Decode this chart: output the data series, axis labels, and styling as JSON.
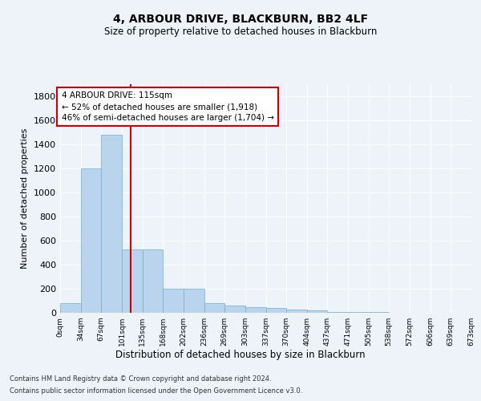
{
  "title": "4, ARBOUR DRIVE, BLACKBURN, BB2 4LF",
  "subtitle": "Size of property relative to detached houses in Blackburn",
  "xlabel": "Distribution of detached houses by size in Blackburn",
  "ylabel": "Number of detached properties",
  "bin_edges": [
    0,
    34,
    67,
    101,
    135,
    168,
    202,
    236,
    269,
    303,
    337,
    370,
    404,
    437,
    471,
    505,
    538,
    572,
    606,
    639,
    673
  ],
  "bin_labels": [
    "0sqm",
    "34sqm",
    "67sqm",
    "101sqm",
    "135sqm",
    "168sqm",
    "202sqm",
    "236sqm",
    "269sqm",
    "303sqm",
    "337sqm",
    "370sqm",
    "404sqm",
    "437sqm",
    "471sqm",
    "505sqm",
    "538sqm",
    "572sqm",
    "606sqm",
    "639sqm",
    "673sqm"
  ],
  "counts": [
    80,
    1200,
    1480,
    530,
    530,
    200,
    200,
    80,
    60,
    45,
    40,
    30,
    20,
    10,
    8,
    5,
    3,
    3,
    2,
    2
  ],
  "bar_color": "#bad4ee",
  "bar_edge_color": "#6baed6",
  "property_sqm": 115,
  "annotation_text": "4 ARBOUR DRIVE: 115sqm\n← 52% of detached houses are smaller (1,918)\n46% of semi-detached houses are larger (1,704) →",
  "annotation_box_color": "#ffffff",
  "annotation_box_edge_color": "#cc0000",
  "vline_color": "#cc0000",
  "ylim": [
    0,
    1900
  ],
  "yticks": [
    0,
    200,
    400,
    600,
    800,
    1000,
    1200,
    1400,
    1600,
    1800
  ],
  "footer_line1": "Contains HM Land Registry data © Crown copyright and database right 2024.",
  "footer_line2": "Contains public sector information licensed under the Open Government Licence v3.0.",
  "bg_color": "#eef2f9",
  "plot_bg_color": "#eef2f9"
}
